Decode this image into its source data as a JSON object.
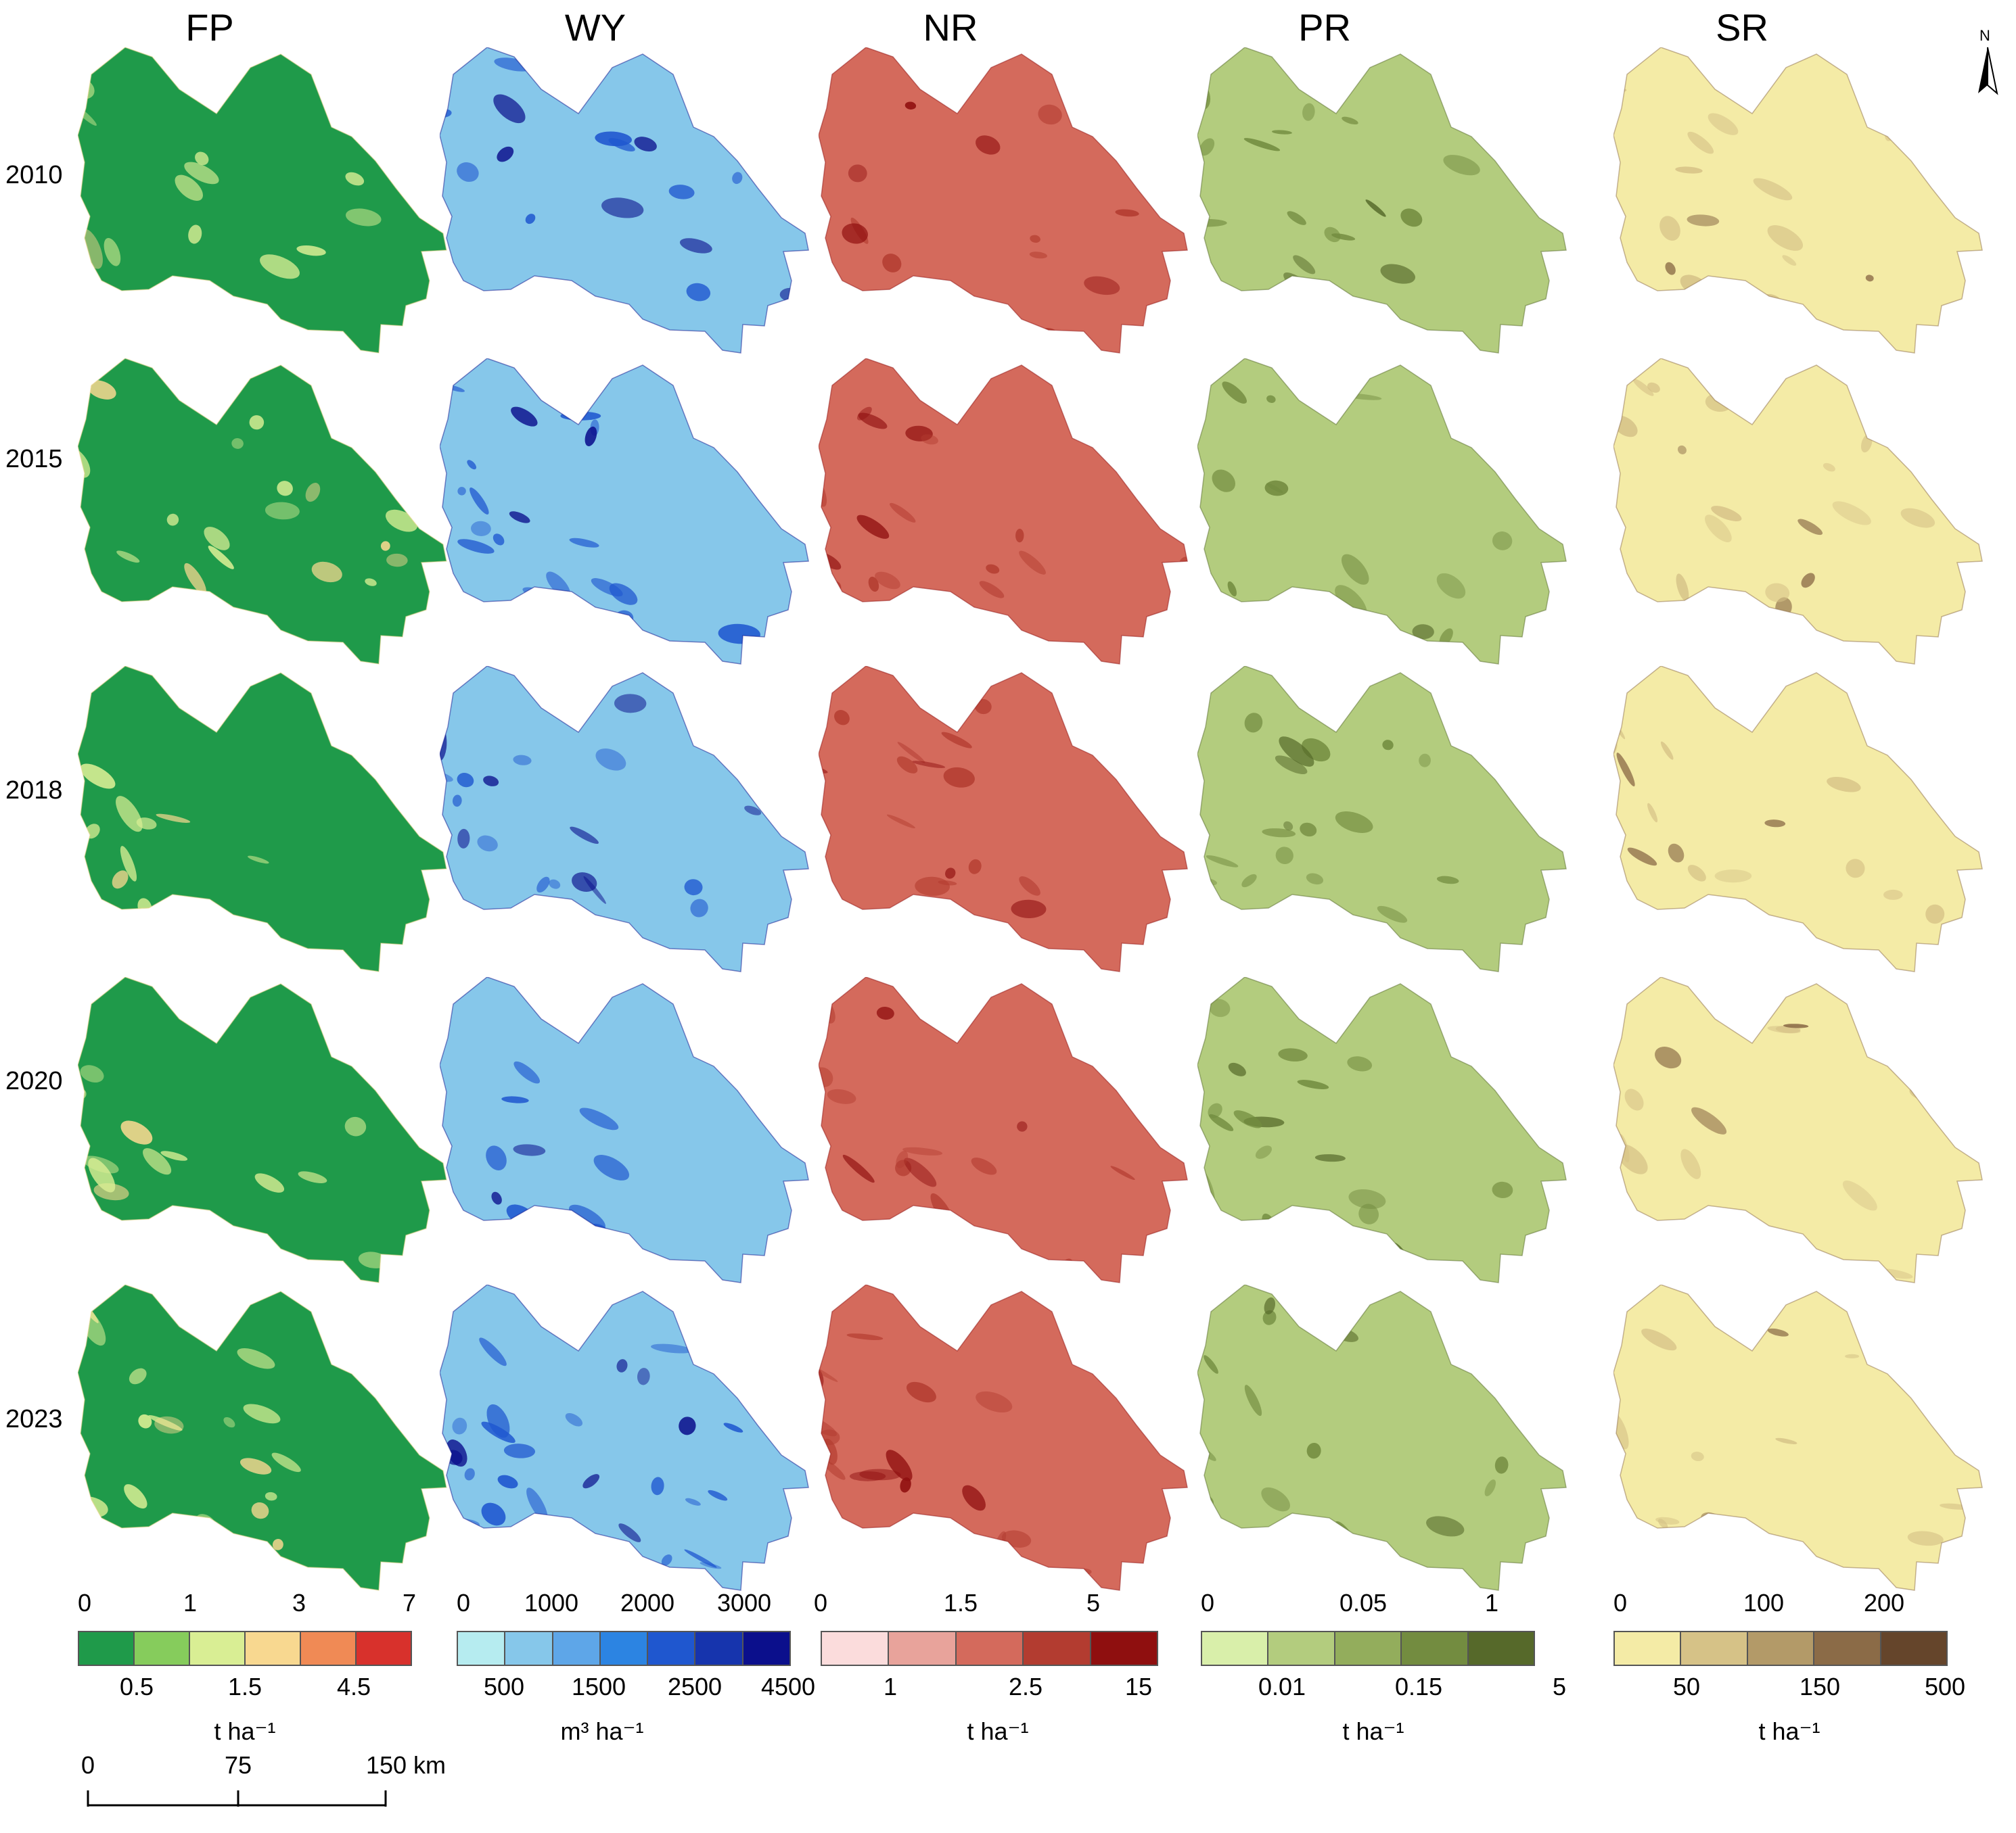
{
  "columns": [
    {
      "title": "FP"
    },
    {
      "title": "WY"
    },
    {
      "title": "NR"
    },
    {
      "title": "PR"
    },
    {
      "title": "SR"
    }
  ],
  "years": [
    "2010",
    "2015",
    "2018",
    "2020",
    "2023"
  ],
  "legends": [
    {
      "name": "FP",
      "colors": [
        "#1f9a4a",
        "#86cc5c",
        "#d9ee94",
        "#f8d890",
        "#f08a55",
        "#d8312c"
      ],
      "top": [
        "0",
        "1",
        "3",
        "7"
      ],
      "bottom": [
        "0.5",
        "1.5",
        "4.5"
      ],
      "unit": "t ha⁻¹"
    },
    {
      "name": "WY",
      "colors": [
        "#b6ecf0",
        "#86c7ea",
        "#5ea6e8",
        "#2c84e2",
        "#1f57cf",
        "#1634ad",
        "#0b0f8c"
      ],
      "top": [
        "0",
        "1000",
        "2000",
        "3000"
      ],
      "bottom": [
        "500",
        "1500",
        "2500",
        "4500"
      ],
      "unit": "m³ ha⁻¹"
    },
    {
      "name": "NR",
      "colors": [
        "#fbdcdc",
        "#e8a39b",
        "#d46a5c",
        "#b33c30",
        "#8f0f0f"
      ],
      "top": [
        "0",
        "1.5",
        "5"
      ],
      "bottom": [
        "1",
        "2.5",
        "15"
      ],
      "unit": "t ha⁻¹"
    },
    {
      "name": "PR",
      "colors": [
        "#d9efaa",
        "#b3cc7e",
        "#93ad5c",
        "#738c40",
        "#56692a"
      ],
      "top": [
        "0",
        "0.05",
        "1"
      ],
      "bottom": [
        "0.01",
        "0.15",
        "5"
      ],
      "unit": "t ha⁻¹"
    },
    {
      "name": "SR",
      "colors": [
        "#f4eba6",
        "#d6c287",
        "#b39a68",
        "#8b6b47",
        "#65452b"
      ],
      "top": [
        "0",
        "100",
        "200"
      ],
      "bottom": [
        "50",
        "150",
        "500"
      ],
      "unit": "t ha⁻¹"
    }
  ],
  "scale": {
    "labels": [
      "0",
      "75",
      "150 km"
    ]
  },
  "north": {
    "label": "N"
  },
  "map_colors": {
    "FP": {
      "base": "#1f9a4a",
      "accent": "#d9ee94",
      "hot": "#f8d890"
    },
    "WY": {
      "base": "#86c7ea",
      "accent": "#1f57cf",
      "hot": "#0b0f8c"
    },
    "NR": {
      "base": "#d46a5c",
      "accent": "#b33c30",
      "hot": "#8f0f0f"
    },
    "PR": {
      "base": "#b3cc7e",
      "accent": "#738c40",
      "hot": "#56692a"
    },
    "SR": {
      "base": "#f4eba6",
      "accent": "#d6c287",
      "hot": "#8b6b47"
    }
  }
}
